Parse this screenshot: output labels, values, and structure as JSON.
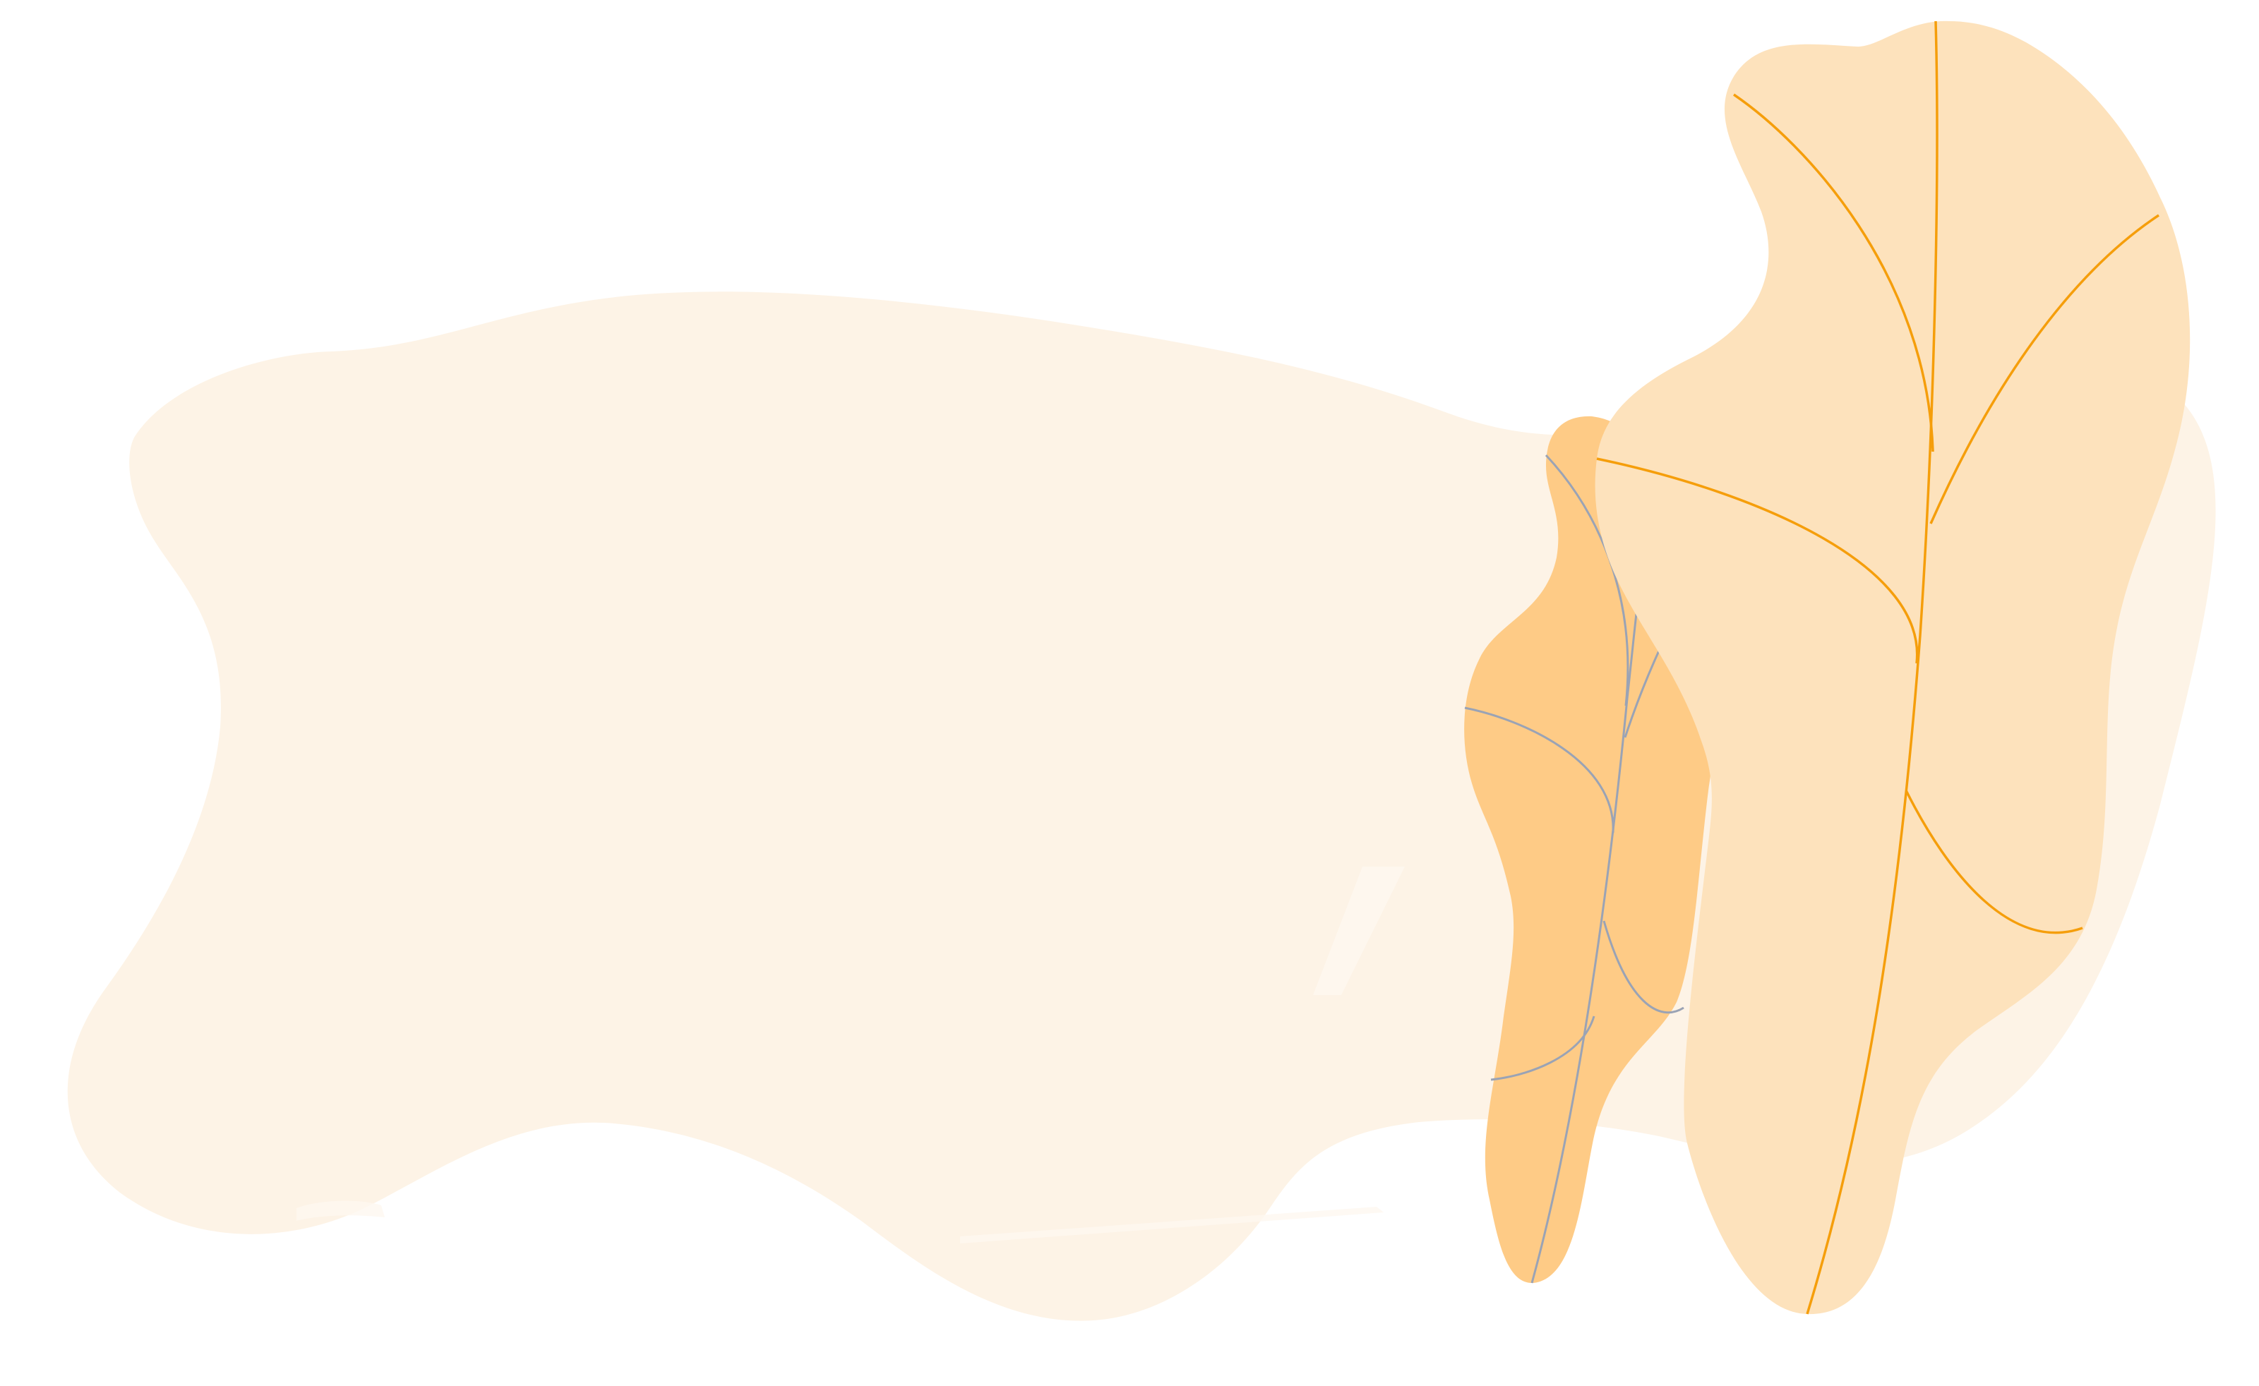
{
  "colors": {
    "background": "#ffffff",
    "blob": "#FDF3E6",
    "blob_highlight": "#FEF8F0",
    "back_leaf_fill": "#FECB86",
    "back_leaf_veins": "#9AA3B5",
    "front_leaf_fill": "#FDE2BC",
    "front_leaf_veins": "#F59E0B"
  },
  "shapes": {
    "background_blob": "abstract-blob",
    "back_leaf": "leaf",
    "front_leaf": "leaf"
  }
}
